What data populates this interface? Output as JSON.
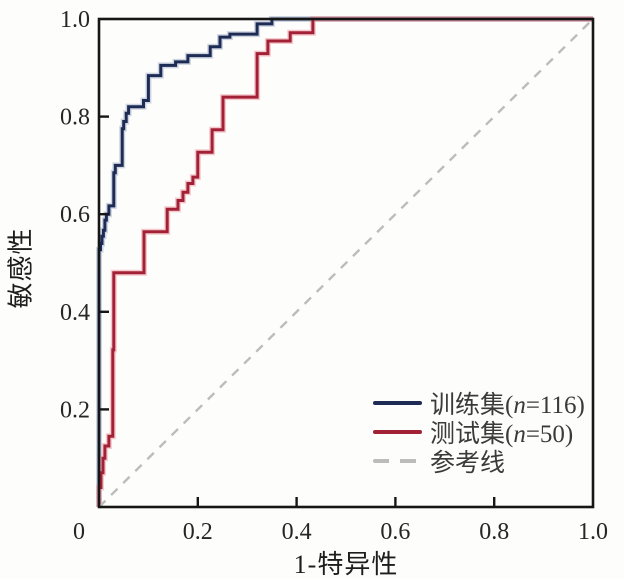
{
  "chart_data": {
    "type": "line",
    "subtype": "roc-step-curves",
    "title": "",
    "xlabel": "1-特异性",
    "ylabel": "敏感性",
    "xlim": [
      0,
      1
    ],
    "ylim": [
      0,
      1
    ],
    "grid": false,
    "legend_position": "inside-lower-right",
    "x_tick_marks": [
      0.2,
      0.4,
      0.6,
      0.8
    ],
    "y_tick_marks": [
      0.2,
      0.4,
      0.6,
      0.8
    ],
    "x_tick_labels": [
      {
        "value": 0,
        "text": "0"
      },
      {
        "value": 0.2,
        "text": "0.2"
      },
      {
        "value": 0.4,
        "text": "0.4"
      },
      {
        "value": 0.6,
        "text": "0.6"
      },
      {
        "value": 0.8,
        "text": "0.8"
      },
      {
        "value": 1.0,
        "text": "1.0"
      }
    ],
    "y_tick_labels": [
      {
        "value": 0.2,
        "text": "0.2"
      },
      {
        "value": 0.4,
        "text": "0.4"
      },
      {
        "value": 0.6,
        "text": "0.6"
      },
      {
        "value": 0.8,
        "text": "0.8"
      },
      {
        "value": 1.0,
        "text": "1.0"
      }
    ],
    "series": [
      {
        "name": "训练集(n=116)",
        "style": "step",
        "color": "#1e2c55",
        "halo": "rgba(110,130,175,0.32)",
        "points": [
          [
            0,
            0
          ],
          [
            0.003,
            0.527
          ],
          [
            0.006,
            0.54
          ],
          [
            0.009,
            0.555
          ],
          [
            0.012,
            0.567
          ],
          [
            0.015,
            0.588
          ],
          [
            0.02,
            0.6
          ],
          [
            0.03,
            0.617
          ],
          [
            0.033,
            0.685
          ],
          [
            0.047,
            0.7
          ],
          [
            0.05,
            0.775
          ],
          [
            0.055,
            0.79
          ],
          [
            0.06,
            0.807
          ],
          [
            0.09,
            0.82
          ],
          [
            0.1,
            0.833
          ],
          [
            0.125,
            0.884
          ],
          [
            0.155,
            0.905
          ],
          [
            0.18,
            0.912
          ],
          [
            0.225,
            0.925
          ],
          [
            0.245,
            0.943
          ],
          [
            0.265,
            0.963
          ],
          [
            0.32,
            0.969
          ],
          [
            0.35,
            0.99
          ],
          [
            0.375,
            1.0
          ],
          [
            1.0,
            1.0
          ]
        ]
      },
      {
        "name": "测试集(n=50)",
        "style": "step",
        "color": "#a32136",
        "halo": "rgba(235,140,150,0.45)",
        "points": [
          [
            0,
            0
          ],
          [
            0.004,
            0.04
          ],
          [
            0.008,
            0.07
          ],
          [
            0.012,
            0.1
          ],
          [
            0.02,
            0.125
          ],
          [
            0.028,
            0.145
          ],
          [
            0.03,
            0.322
          ],
          [
            0.091,
            0.48
          ],
          [
            0.138,
            0.564
          ],
          [
            0.16,
            0.61
          ],
          [
            0.17,
            0.628
          ],
          [
            0.18,
            0.645
          ],
          [
            0.19,
            0.663
          ],
          [
            0.2,
            0.676
          ],
          [
            0.229,
            0.727
          ],
          [
            0.251,
            0.773
          ],
          [
            0.32,
            0.84
          ],
          [
            0.342,
            0.929
          ],
          [
            0.387,
            0.955
          ],
          [
            0.433,
            0.972
          ],
          [
            0.567,
            1.0
          ],
          [
            1.0,
            1.0
          ]
        ]
      },
      {
        "name": "参考线",
        "style": "dashed-line",
        "color": "#bcbcbc",
        "halo": null,
        "points": [
          [
            0,
            0
          ],
          [
            1,
            1
          ]
        ]
      }
    ]
  },
  "legend": {
    "items": [
      {
        "prefix": "训练集(",
        "italic": "n",
        "suffix": "=116)"
      },
      {
        "prefix": "测试集(",
        "italic": "n",
        "suffix": "=50)"
      },
      {
        "prefix": "参考线",
        "italic": "",
        "suffix": ""
      }
    ]
  },
  "colors": {
    "frame": "#161616",
    "tick_text": "#262626",
    "background": "#fdfdfb"
  }
}
